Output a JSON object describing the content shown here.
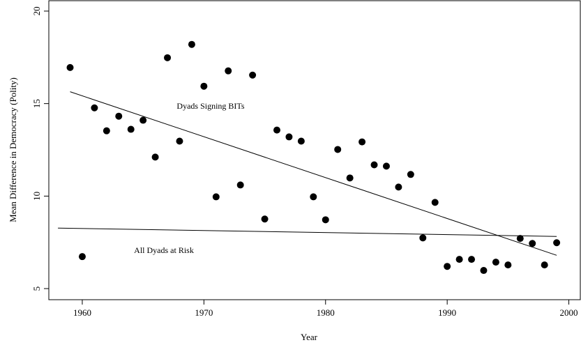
{
  "chart_data": {
    "type": "scatter",
    "xlabel": "Year",
    "ylabel": "Mean Difference in Democracy (Polity)",
    "xlim": [
      1957.25,
      2001.0
    ],
    "ylim": [
      4.4,
      20.6
    ],
    "xticks": [
      1960,
      1970,
      1980,
      1990,
      2000
    ],
    "yticks": [
      5,
      10,
      15,
      20
    ],
    "color": "#000000",
    "x": [
      1959,
      1960,
      1961,
      1962,
      1963,
      1964,
      1965,
      1966,
      1967,
      1968,
      1969,
      1970,
      1971,
      1972,
      1973,
      1974,
      1975,
      1976,
      1977,
      1978,
      1979,
      1980,
      1981,
      1982,
      1983,
      1984,
      1985,
      1986,
      1987,
      1988,
      1989,
      1990,
      1991,
      1992,
      1993,
      1994,
      1995,
      1996,
      1997,
      1998,
      1999
    ],
    "values": [
      16.95,
      6.73,
      14.77,
      13.53,
      14.32,
      13.61,
      14.1,
      12.11,
      17.48,
      12.97,
      18.2,
      15.94,
      9.96,
      16.77,
      10.6,
      16.54,
      8.76,
      13.57,
      13.2,
      12.97,
      9.96,
      8.72,
      12.52,
      10.98,
      12.93,
      11.69,
      11.62,
      10.49,
      11.17,
      7.74,
      9.66,
      6.2,
      6.58,
      6.58,
      5.98,
      6.43,
      6.28,
      7.71,
      7.44,
      6.28,
      7.48
    ],
    "lines": [
      {
        "label": "Dyads Signing BITs",
        "x": [
          1959,
          1999
        ],
        "y": [
          15.64,
          6.8
        ]
      },
      {
        "label": "All Dyads at Risk",
        "x": [
          1958,
          1999
        ],
        "y": [
          8.27,
          7.82
        ]
      }
    ]
  }
}
